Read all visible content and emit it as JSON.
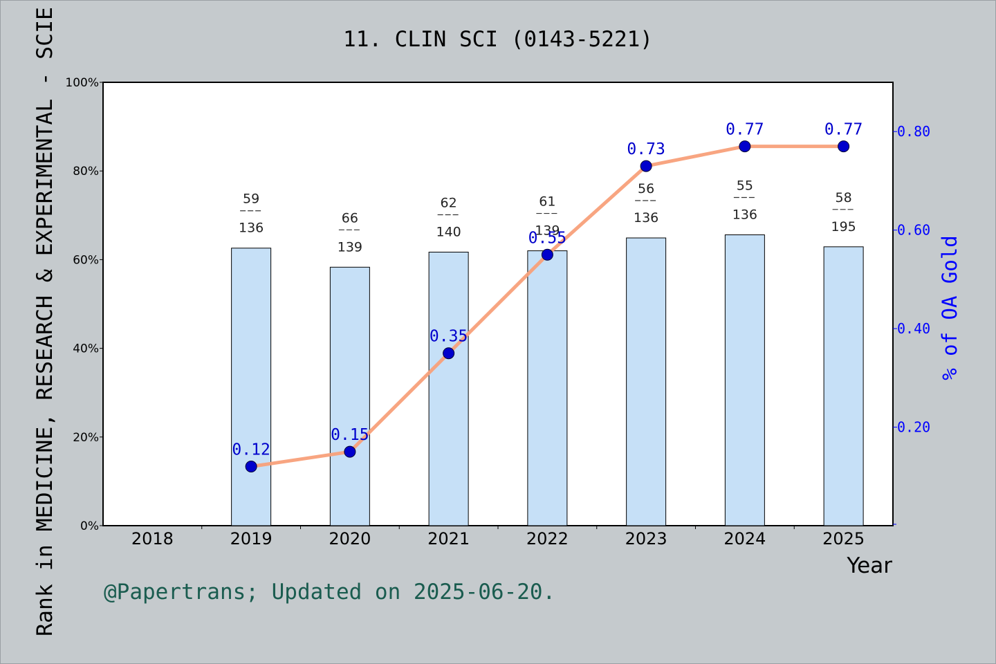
{
  "chart_data": {
    "type": "bar",
    "title": "11. CLIN SCI (0143-5221)",
    "xlabel": "Year",
    "ylabel_left": "Rank in MEDICINE, RESEARCH & EXPERIMENTAL - SCIE",
    "ylabel_right": "% of OA Gold",
    "footer": "@Papertrans; Updated on 2025-06-20.",
    "categories": [
      "2018",
      "2019",
      "2020",
      "2021",
      "2022",
      "2023",
      "2024",
      "2025"
    ],
    "left_axis": {
      "ylim": [
        0,
        100
      ],
      "ticks": [
        "0%",
        "20%",
        "40%",
        "60%",
        "80%",
        "100%"
      ]
    },
    "right_axis": {
      "ylim": [
        0,
        0.9
      ],
      "ticks": [
        "0.20",
        "0.40",
        "0.60",
        "0.80"
      ]
    },
    "series": [
      {
        "kind": "bar",
        "values": [
          null,
          62.6,
          58.3,
          61.7,
          62.0,
          64.9,
          65.6,
          62.9
        ],
        "ranks": [
          "",
          "59",
          "66",
          "62",
          "61",
          "56",
          "55",
          "58"
        ],
        "totals": [
          "",
          "136",
          "139",
          "140",
          "139",
          "136",
          "136",
          "195"
        ],
        "color": "#c6e0f7"
      },
      {
        "kind": "line",
        "values": [
          null,
          0.12,
          0.15,
          0.35,
          0.55,
          0.73,
          0.77,
          0.77
        ],
        "labels": [
          "",
          "0.12",
          "0.15",
          "0.35",
          "0.55",
          "0.73",
          "0.77",
          "0.77"
        ],
        "color": "#f8a07a",
        "marker_color": "#0000cc"
      }
    ],
    "grid": false,
    "colors": {
      "background": "#c5cacd",
      "plot": "#ffffff",
      "right_axis": "#0000ff",
      "footer": "#1a5c4f"
    }
  }
}
